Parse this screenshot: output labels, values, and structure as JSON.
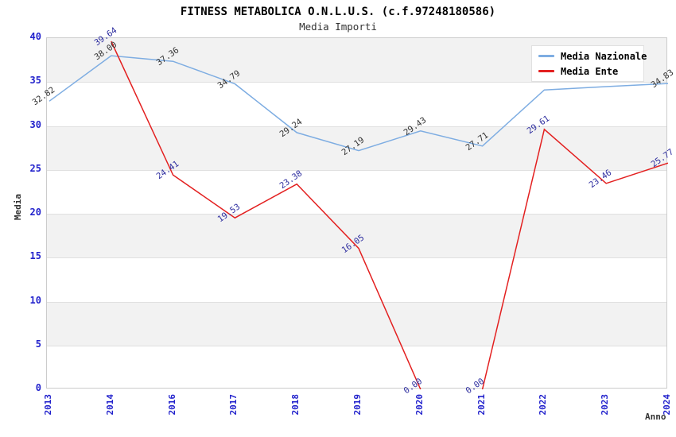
{
  "chart_data": {
    "type": "line",
    "title": "FITNESS METABOLICA O.N.L.U.S. (c.f.97248180586)",
    "subtitle": "Media Importi",
    "xlabel": "Anno",
    "ylabel": "Media",
    "x_categories": [
      "2013",
      "2014",
      "2016",
      "2017",
      "2018",
      "2019",
      "2020",
      "2021",
      "2022",
      "2023",
      "2024"
    ],
    "ylim": [
      0,
      40
    ],
    "yticks": [
      0,
      5,
      10,
      15,
      20,
      25,
      30,
      35,
      40
    ],
    "grid": "alternating-horizontal-bands",
    "legend_position": "top-right-overlay",
    "series": [
      {
        "name": "Media Nazionale",
        "color": "#7eade2",
        "label_color": "#333333",
        "values": [
          32.82,
          38.0,
          37.36,
          34.79,
          29.24,
          27.19,
          29.43,
          27.71,
          34.1,
          34.48,
          34.83
        ],
        "labels": [
          "32.82",
          "38.00",
          "37.36",
          "34.79",
          "29.24",
          "27.19",
          "29.43",
          "27.71",
          null,
          null,
          "34.83"
        ],
        "segments": [
          [
            0,
            10
          ]
        ]
      },
      {
        "name": "Media Ente",
        "color": "#e32020",
        "label_color": "#2d2d9f",
        "values": [
          null,
          39.64,
          24.41,
          19.53,
          23.38,
          16.05,
          0.0,
          0.0,
          29.61,
          23.46,
          25.77
        ],
        "labels": [
          null,
          "39.64",
          "24.41",
          "19.53",
          "23.38",
          "16.05",
          "0.00",
          "0.00",
          "29.61",
          "23.46",
          "25.77"
        ],
        "segments": [
          [
            1,
            6
          ],
          [
            7,
            10
          ]
        ]
      }
    ]
  },
  "colors": {
    "background": "#ffffff",
    "band_fill": "#f2f2f2",
    "gridline": "#e0e0e0",
    "plot_border": "#cccccc",
    "tick_text": "#2222cc",
    "axis_title_text": "#333333",
    "title_text": "#000000",
    "legend_bg": "#ffffff",
    "legend_border": "#e0e0e0",
    "legend_text": "#000000"
  }
}
